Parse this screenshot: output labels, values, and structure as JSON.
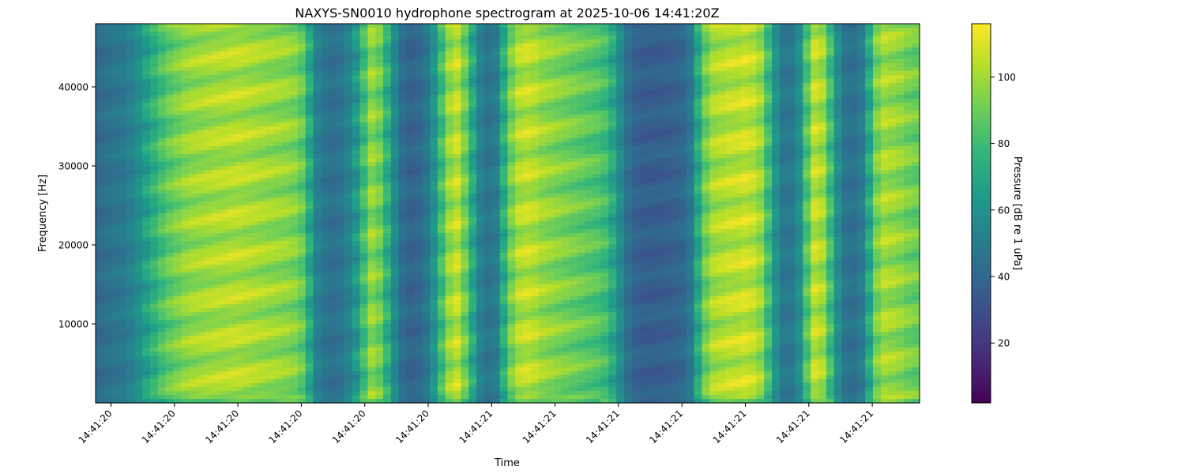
{
  "chart_data": {
    "type": "heatmap",
    "title": "NAXYS-SN0010 hydrophone spectrogram at 2025-10-06 14:41:20Z",
    "xlabel": "Time",
    "ylabel": "Frequency [Hz]",
    "colorbar_label": "Pressure [dB re 1 uPa]",
    "colormap": "viridis",
    "grid": false,
    "x_tick_labels": [
      "14:41:20",
      "14:41:20",
      "14:41:20",
      "14:41:20",
      "14:41:20",
      "14:41:20",
      "14:41:21",
      "14:41:21",
      "14:41:21",
      "14:41:21",
      "14:41:21",
      "14:41:21",
      "14:41:21"
    ],
    "y_ticks": [
      10000,
      20000,
      30000,
      40000
    ],
    "y_tick_labels": [
      "10000",
      "20000",
      "30000",
      "40000"
    ],
    "ylim": [
      0,
      48000
    ],
    "colorbar_ticks": [
      20,
      40,
      60,
      80,
      100
    ],
    "colorbar_tick_labels": [
      "20",
      "40",
      "60",
      "80",
      "100"
    ],
    "colorbar_range": [
      2,
      116
    ],
    "time_profile_db": [
      42,
      44,
      46,
      48,
      52,
      58,
      66,
      74,
      82,
      88,
      92,
      96,
      98,
      99,
      100,
      101,
      101,
      102,
      102,
      101,
      100,
      99,
      98,
      97,
      96,
      94,
      88,
      70,
      52,
      46,
      44,
      46,
      52,
      62,
      80,
      96,
      90,
      74,
      55,
      42,
      38,
      40,
      46,
      60,
      80,
      98,
      104,
      90,
      70,
      52,
      46,
      50,
      72,
      92,
      102,
      104,
      102,
      98,
      96,
      94,
      92,
      90,
      88,
      86,
      84,
      80,
      70,
      56,
      44,
      38,
      36,
      36,
      36,
      37,
      38,
      40,
      48,
      70,
      90,
      100,
      102,
      104,
      104,
      106,
      104,
      98,
      80,
      60,
      48,
      48,
      58,
      84,
      104,
      100,
      80,
      58,
      46,
      44,
      50,
      70,
      92,
      100,
      98,
      96,
      92,
      90
    ],
    "colormap_stops": [
      "#440154",
      "#482878",
      "#3e4989",
      "#31688e",
      "#26828e",
      "#1f9e89",
      "#35b779",
      "#6ece58",
      "#b5de2b",
      "#fde725"
    ]
  }
}
